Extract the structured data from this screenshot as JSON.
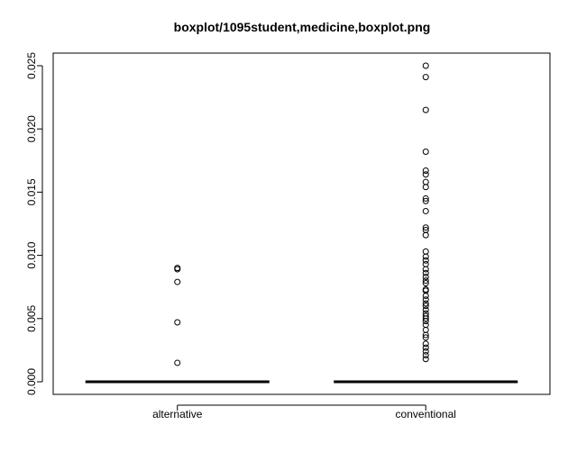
{
  "chart_data": {
    "type": "boxplot",
    "title": "boxplot/1095student,medicine,boxplot.png",
    "xlabel": "",
    "ylabel": "",
    "ylim": [
      -0.001,
      0.0255
    ],
    "y_ticks": [
      0.0,
      0.005,
      0.01,
      0.015,
      0.02,
      0.025
    ],
    "y_tick_labels": [
      "0.000",
      "0.005",
      "0.010",
      "0.015",
      "0.020",
      "0.025"
    ],
    "grid": false,
    "categories": [
      "alternative",
      "conventional"
    ],
    "boxes": [
      {
        "name": "alternative",
        "min": 0,
        "q1": 0,
        "median": 0,
        "q3": 0,
        "max": 0,
        "outliers": [
          0.0089,
          0.009,
          0.0079,
          0.0047,
          0.0015
        ]
      },
      {
        "name": "conventional",
        "min": 0,
        "q1": 0,
        "median": 0,
        "q3": 0,
        "max": 0,
        "outliers": [
          0.025,
          0.0241,
          0.0215,
          0.0182,
          0.0167,
          0.0164,
          0.0158,
          0.0154,
          0.0145,
          0.0143,
          0.0135,
          0.0122,
          0.012,
          0.0116,
          0.0103,
          0.0099,
          0.0096,
          0.0093,
          0.0089,
          0.0086,
          0.0083,
          0.008,
          0.0078,
          0.0073,
          0.0072,
          0.0068,
          0.0065,
          0.0062,
          0.006,
          0.0057,
          0.0054,
          0.0052,
          0.005,
          0.0048,
          0.0045,
          0.0041,
          0.0037,
          0.0035,
          0.003,
          0.0027,
          0.0024,
          0.0021,
          0.0018
        ]
      }
    ]
  }
}
